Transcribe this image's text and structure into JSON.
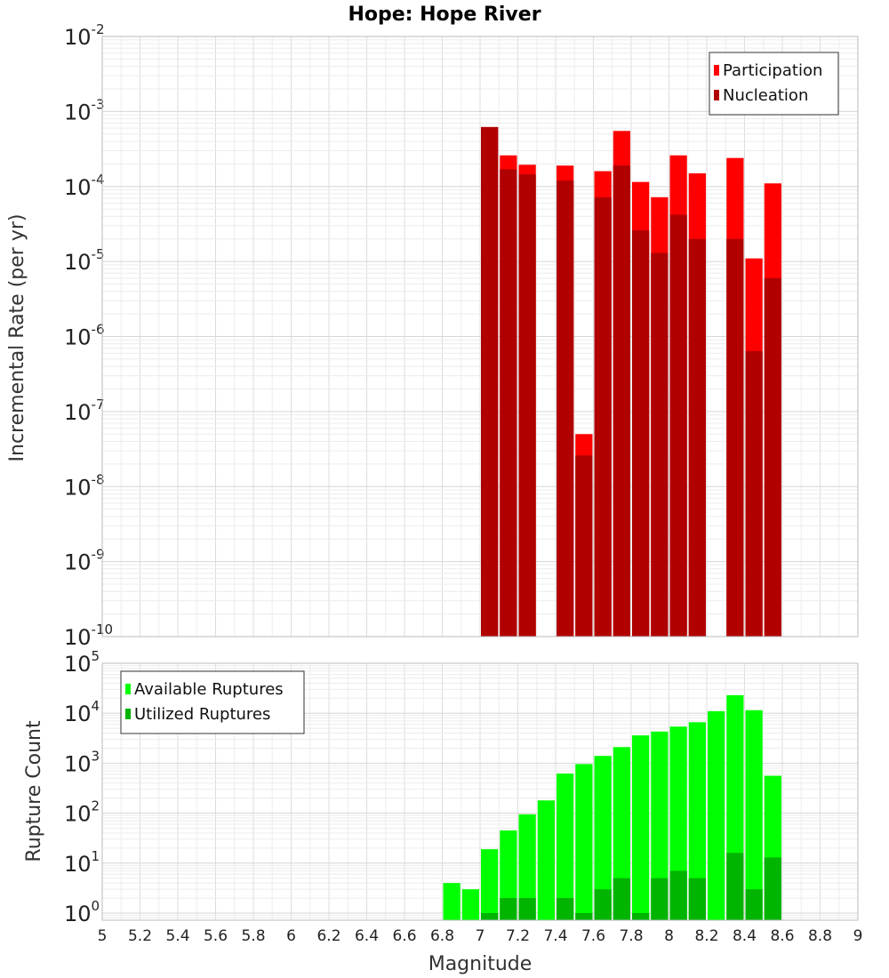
{
  "title": "Hope: Hope River",
  "colors": {
    "participation": "#ff0000",
    "nucleation": "#b00000",
    "available": "#00ff00",
    "utilized": "#00b400"
  },
  "chart_data": [
    {
      "type": "bar",
      "title": "Hope: Hope River",
      "xlabel": "",
      "ylabel": "Incremental Rate (per yr)",
      "y_scale": "log",
      "xlim": [
        5,
        9
      ],
      "ylim": [
        1e-10,
        0.01
      ],
      "y_tick_exponents": [
        -10,
        -9,
        -8,
        -7,
        -6,
        -5,
        -4,
        -3,
        -2
      ],
      "grid": true,
      "legend_position": "top-right",
      "bar_width": 0.1,
      "series": [
        {
          "name": "Participation",
          "color": "#ff0000",
          "x": [
            7.0,
            7.1,
            7.2,
            7.4,
            7.5,
            7.6,
            7.7,
            7.8,
            7.9,
            8.0,
            8.1,
            8.3,
            8.4,
            8.5
          ],
          "values": [
            0.00062,
            0.00026,
            0.000195,
            0.00019,
            5e-08,
            0.00016,
            0.00055,
            0.000115,
            7.2e-05,
            0.00026,
            0.00015,
            0.00024,
            1.1e-05,
            0.00011
          ]
        },
        {
          "name": "Nucleation",
          "color": "#b00000",
          "x": [
            7.0,
            7.1,
            7.2,
            7.4,
            7.5,
            7.6,
            7.7,
            7.8,
            7.9,
            8.0,
            8.1,
            8.3,
            8.4,
            8.5
          ],
          "values": [
            0.00062,
            0.00017,
            0.000145,
            0.00012,
            2.6e-08,
            7.2e-05,
            0.00019,
            2.6e-05,
            1.3e-05,
            4.2e-05,
            2e-05,
            2e-05,
            6.4e-07,
            6e-06
          ]
        }
      ]
    },
    {
      "type": "bar",
      "title": "",
      "xlabel": "Magnitude",
      "ylabel": "Rupture Count",
      "y_scale": "log",
      "xlim": [
        5,
        9
      ],
      "ylim": [
        0.72,
        100000.0
      ],
      "y_tick_exponents": [
        0,
        1,
        2,
        3,
        4,
        5
      ],
      "x_ticks": [
        "5",
        "5.2",
        "5.4",
        "5.6",
        "5.8",
        "6",
        "6.2",
        "6.4",
        "6.6",
        "6.8",
        "7",
        "7.2",
        "7.4",
        "7.6",
        "7.8",
        "8",
        "8.2",
        "8.4",
        "8.6",
        "8.8",
        "9"
      ],
      "grid": true,
      "legend_position": "top-left",
      "bar_width": 0.1,
      "series": [
        {
          "name": "Available Ruptures",
          "color": "#00ff00",
          "x": [
            6.8,
            6.9,
            7.0,
            7.1,
            7.2,
            7.3,
            7.4,
            7.5,
            7.6,
            7.7,
            7.8,
            7.9,
            8.0,
            8.1,
            8.2,
            8.3,
            8.4,
            8.5
          ],
          "values": [
            4,
            3,
            19,
            45,
            95,
            180,
            620,
            960,
            1400,
            2100,
            3600,
            4300,
            5400,
            6600,
            11000,
            23000,
            11500,
            560
          ]
        },
        {
          "name": "Utilized Ruptures",
          "color": "#00b400",
          "x": [
            7.0,
            7.1,
            7.2,
            7.4,
            7.5,
            7.6,
            7.7,
            7.8,
            7.9,
            8.0,
            8.1,
            8.3,
            8.4,
            8.5
          ],
          "values": [
            1,
            2,
            2,
            2,
            1,
            3,
            5,
            1,
            5,
            7,
            5,
            16,
            3,
            13
          ]
        }
      ]
    }
  ]
}
